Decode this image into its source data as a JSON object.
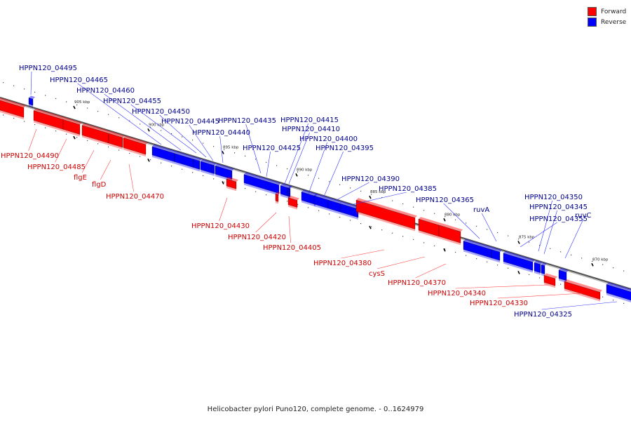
{
  "caption": "Helicobacter pylori Puno120, complete genome. - 0..1624979",
  "legend": [
    {
      "label": "Forward",
      "color": "#ff0000"
    },
    {
      "label": "Reverse",
      "color": "#0000ff"
    }
  ],
  "colors": {
    "forward": "#ff0000",
    "reverse": "#0000ff",
    "axis": "#888888",
    "forward_label": "#cc0000",
    "reverse_label": "#00008b"
  },
  "ticks": [
    "905 kbp",
    "900 kbp",
    "895 kbp",
    "890 kbp",
    "885 kbp",
    "880 kbp",
    "875 kbp",
    "870 kbp"
  ],
  "genes": [
    {
      "name": "",
      "strand": "forward"
    },
    {
      "name": "HPPN120_04495",
      "strand": "reverse"
    },
    {
      "name": "HPPN120_04490",
      "strand": "forward"
    },
    {
      "name": "HPPN120_04485",
      "strand": "forward"
    },
    {
      "name": "flgE",
      "strand": "forward"
    },
    {
      "name": "flgD",
      "strand": "forward"
    },
    {
      "name": "HPPN120_04470",
      "strand": "forward"
    },
    {
      "name": "HPPN120_04465",
      "strand": "reverse"
    },
    {
      "name": "HPPN120_04460",
      "strand": "reverse"
    },
    {
      "name": "HPPN120_04455",
      "strand": "reverse"
    },
    {
      "name": "HPPN120_04450",
      "strand": "reverse"
    },
    {
      "name": "HPPN120_04445",
      "strand": "reverse"
    },
    {
      "name": "HPPN120_04440",
      "strand": "reverse"
    },
    {
      "name": "HPPN120_04435",
      "strand": "reverse"
    },
    {
      "name": "HPPN120_04430",
      "strand": "forward"
    },
    {
      "name": "HPPN120_04425",
      "strand": "reverse"
    },
    {
      "name": "HPPN120_04420",
      "strand": "forward"
    },
    {
      "name": "HPPN120_04415",
      "strand": "reverse"
    },
    {
      "name": "HPPN120_04410",
      "strand": "reverse"
    },
    {
      "name": "HPPN120_04405",
      "strand": "forward"
    },
    {
      "name": "HPPN120_04400",
      "strand": "reverse"
    },
    {
      "name": "HPPN120_04395",
      "strand": "reverse"
    },
    {
      "name": "HPPN120_04390",
      "strand": "reverse"
    },
    {
      "name": "HPPN120_04385",
      "strand": "reverse"
    },
    {
      "name": "HPPN120_04380",
      "strand": "forward"
    },
    {
      "name": "cysS",
      "strand": "forward"
    },
    {
      "name": "HPPN120_04370",
      "strand": "forward"
    },
    {
      "name": "HPPN120_04365",
      "strand": "reverse"
    },
    {
      "name": "ruvA",
      "strand": "reverse"
    },
    {
      "name": "HPPN120_04355",
      "strand": "reverse"
    },
    {
      "name": "HPPN120_04350",
      "strand": "reverse"
    },
    {
      "name": "HPPN120_04345",
      "strand": "reverse"
    },
    {
      "name": "HPPN120_04340",
      "strand": "forward"
    },
    {
      "name": "ruvC",
      "strand": "reverse"
    },
    {
      "name": "HPPN120_04330",
      "strand": "forward"
    },
    {
      "name": "HPPN120_04325",
      "strand": "reverse"
    }
  ]
}
